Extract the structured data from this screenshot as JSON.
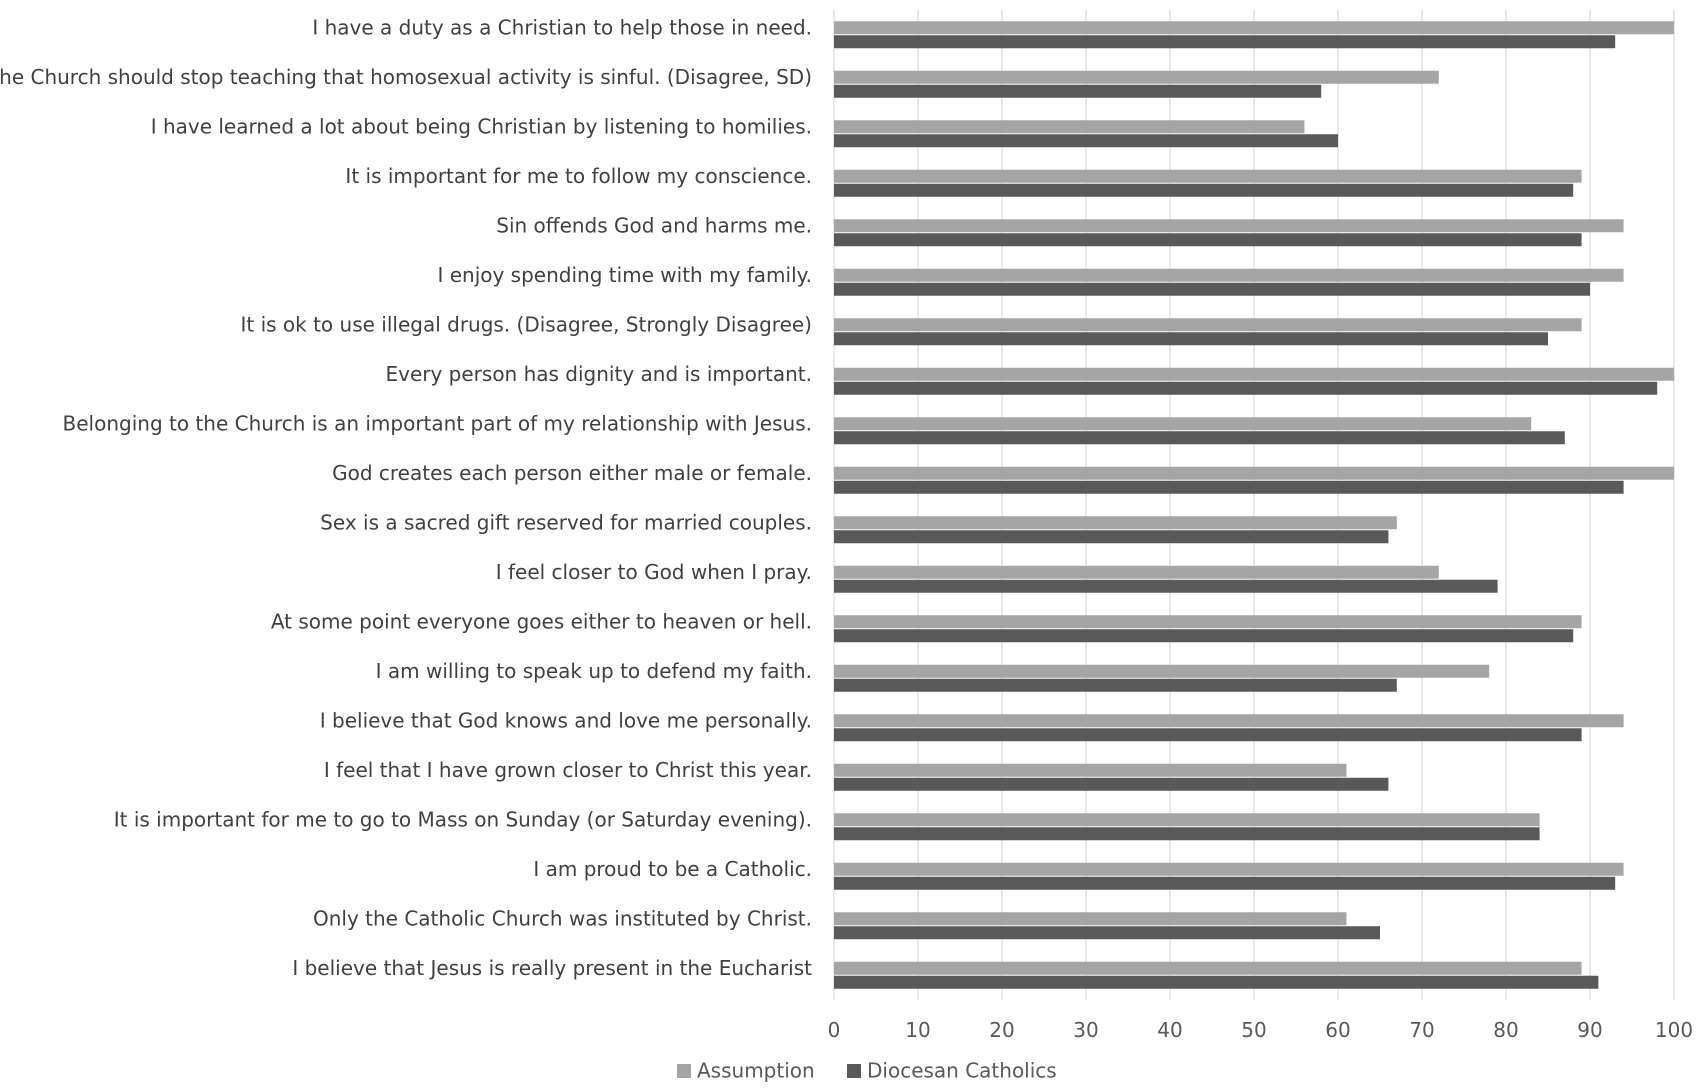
{
  "chart_data": {
    "type": "bar",
    "orientation": "horizontal",
    "categories": [
      "I have a duty as a Christian to help those in need.",
      "The Church should stop teaching that homosexual activity is sinful.  (Disagree, SD)",
      "I have learned a lot about being Christian by listening to homilies.",
      "It is important for me to follow my conscience.",
      "Sin offends God and harms me.",
      "I enjoy spending time with my family.",
      "It is ok to use illegal drugs. (Disagree, Strongly Disagree)",
      "Every person has dignity and is important.",
      "Belonging to the Church is an important part of my relationship with Jesus.",
      "God creates each person either male or female.",
      "Sex is a sacred gift reserved for married couples.",
      "I feel closer to God when I pray.",
      "At some point everyone goes either to heaven or hell.",
      "I am willing to speak up to defend my faith.",
      "I believe that God knows and love me personally.",
      "I feel that I have grown closer to Christ this year.",
      "It is important for me to go to Mass on Sunday (or Saturday evening).",
      "I am proud to be a Catholic.",
      "Only the Catholic Church was instituted by Christ.",
      "I believe that Jesus is really present in the Eucharist"
    ],
    "series": [
      {
        "name": "Assumption",
        "color": "#a5a5a5",
        "values": [
          100,
          72,
          56,
          89,
          94,
          94,
          89,
          100,
          83,
          100,
          67,
          72,
          89,
          78,
          94,
          61,
          84,
          94,
          61,
          89
        ]
      },
      {
        "name": "Diocesan Catholics",
        "color": "#595959",
        "values": [
          93,
          58,
          60,
          88,
          89,
          90,
          85,
          98,
          87,
          94,
          66,
          79,
          88,
          67,
          89,
          66,
          84,
          93,
          65,
          91
        ]
      }
    ],
    "xlim": [
      0,
      100
    ],
    "xticks": [
      "0",
      "10",
      "20",
      "30",
      "40",
      "50",
      "60",
      "70",
      "80",
      "90",
      "100"
    ],
    "grid": true,
    "legend_position": "bottom"
  }
}
